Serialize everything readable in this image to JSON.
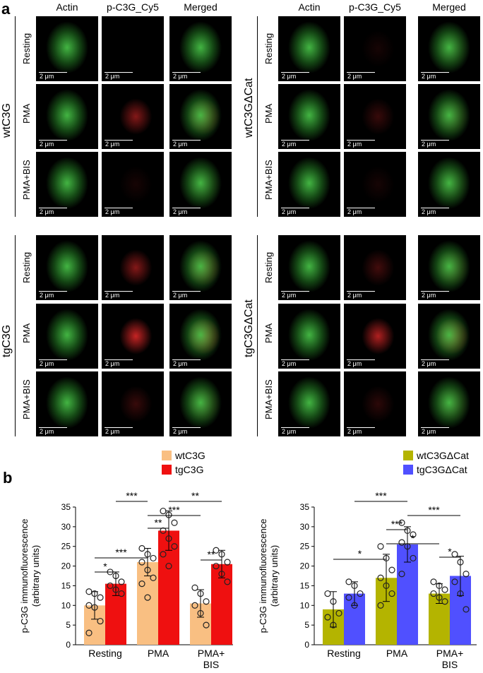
{
  "panel_a": {
    "label": "a",
    "columns": [
      "Actin",
      "p-C3G_Cy5",
      "Merged"
    ],
    "rows": [
      "Resting",
      "PMA",
      "PMA+BIS"
    ],
    "scale_bar": "2 μm",
    "groups": [
      "wtC3G",
      "wtC3GΔCat",
      "tgC3G",
      "tgC3GΔCat"
    ]
  },
  "panel_b": {
    "label": "b",
    "legend_left": [
      "wtC3G",
      "tgC3G"
    ],
    "legend_right": [
      "wtC3GΔCat",
      "tgC3GΔCat"
    ],
    "colors": {
      "wtC3G": "#f9bf82",
      "tgC3G": "#ef1010",
      "wtC3GdCat": "#b4b400",
      "tgC3GdCat": "#5050ff"
    }
  },
  "chart_data": [
    {
      "type": "bar",
      "ylabel": "p-C3G immunofluorescence (arbitrary units)",
      "ylabel_lines": [
        "p-C3G immunofluorescence",
        "(arbitrary units)"
      ],
      "ylim": [
        0,
        35
      ],
      "yticks": [
        "0",
        "5",
        "10",
        "15",
        "20",
        "25",
        "30",
        "35"
      ],
      "categories": [
        "Resting",
        "PMA",
        "PMA+ BIS"
      ],
      "category_lines": [
        [
          "Resting"
        ],
        [
          "PMA"
        ],
        [
          "PMA+",
          "BIS"
        ]
      ],
      "series": [
        {
          "name": "wtC3G",
          "values": [
            10,
            21,
            10.5
          ],
          "sd": [
            3.5,
            3.5,
            3.5
          ],
          "points": [
            [
              13.5,
              13,
              12,
              10,
              9.5,
              6,
              3
            ],
            [
              24.5,
              23,
              22,
              21,
              19,
              17,
              15.5,
              12
            ],
            [
              14.5,
              13,
              11,
              10,
              8,
              5
            ]
          ]
        },
        {
          "name": "tgC3G",
          "values": [
            15.5,
            29,
            20.5
          ],
          "sd": [
            3,
            5,
            3.5
          ],
          "points": [
            [
              18.5,
              17.5,
              16,
              15,
              14,
              13
            ],
            [
              34,
              33,
              31,
              29,
              27,
              25,
              23,
              20
            ],
            [
              24,
              23,
              21,
              20,
              18,
              16
            ]
          ]
        }
      ],
      "significance": [
        "*",
        "***",
        "**",
        "***",
        "***",
        "**",
        "**"
      ]
    },
    {
      "type": "bar",
      "ylabel": "p-C3G immunofluorescence (arbitrary units)",
      "ylabel_lines": [
        "p-C3G immunofluorescence",
        "(arbitrary units)"
      ],
      "ylim": [
        0,
        35
      ],
      "yticks": [
        "0",
        "5",
        "10",
        "15",
        "20",
        "25",
        "30",
        "35"
      ],
      "categories": [
        "Resting",
        "PMA",
        "PMA+ BIS"
      ],
      "category_lines": [
        [
          "Resting"
        ],
        [
          "PMA"
        ],
        [
          "PMA+",
          "BIS"
        ]
      ],
      "series": [
        {
          "name": "wtC3GΔCat",
          "values": [
            9,
            17,
            13
          ],
          "sd": [
            4.5,
            6,
            2.5
          ],
          "points": [
            [
              13,
              11,
              8,
              7,
              5
            ],
            [
              25,
              22,
              19,
              17,
              15,
              13,
              10
            ],
            [
              16,
              15,
              14,
              13,
              12,
              11
            ]
          ]
        },
        {
          "name": "tgC3GΔCat",
          "values": [
            13,
            25.5,
            17.5
          ],
          "sd": [
            3,
            4.5,
            5
          ],
          "points": [
            [
              16,
              15,
              13,
              12,
              10
            ],
            [
              31,
              29,
              28,
              26,
              25,
              22,
              18
            ],
            [
              23,
              21,
              18,
              16,
              13,
              9
            ]
          ]
        }
      ],
      "significance": [
        "*",
        "***",
        "***",
        "*",
        "***",
        "*"
      ]
    }
  ]
}
